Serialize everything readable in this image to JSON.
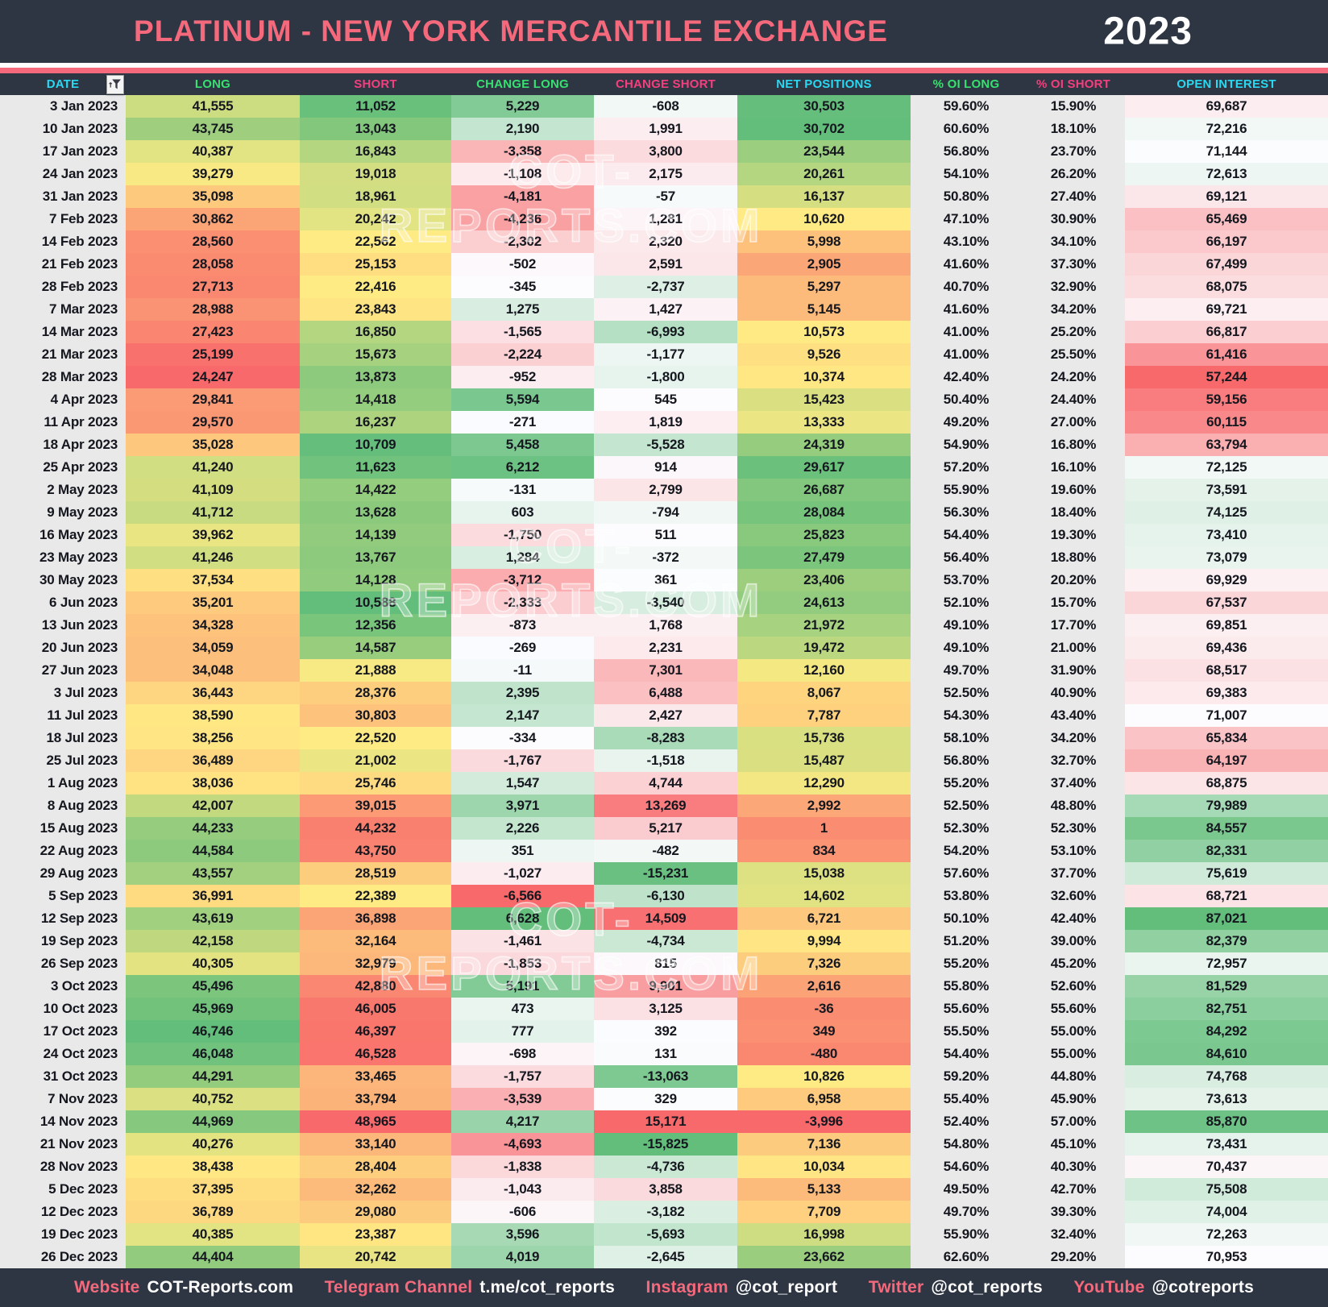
{
  "header": {
    "title": "PLATINUM - NEW YORK MERCANTILE EXCHANGE",
    "year": "2023"
  },
  "watermark": "COT-REPORTS.COM",
  "colors": {
    "bar_background": "#2e3643",
    "title_text": "#f4697c",
    "accent_line": "#f4697c",
    "header_cyan": "#29d9f2",
    "header_green": "#37e170",
    "header_pink": "#f43f7e",
    "cell_text": "#15171f",
    "neutral_cell": "#e9e9e9",
    "scale_red": "#f8696b",
    "scale_yellow": "#ffeb84",
    "scale_green": "#63be7b",
    "scale_white": "#fcfcff"
  },
  "chart_data": {
    "type": "table",
    "title": "PLATINUM - NEW YORK MERCANTILE EXCHANGE",
    "year": "2023",
    "columns": [
      {
        "name": "date",
        "label": "DATE",
        "header_color": "cyan",
        "scale": "none"
      },
      {
        "name": "long",
        "label": "LONG",
        "header_color": "green",
        "scale": "ryg"
      },
      {
        "name": "short",
        "label": "SHORT",
        "header_color": "pink",
        "scale": "gyr"
      },
      {
        "name": "change-long",
        "label": "CHANGE LONG",
        "header_color": "green",
        "scale": "rwg"
      },
      {
        "name": "change-short",
        "label": "CHANGE SHORT",
        "header_color": "pink",
        "scale": "gwr"
      },
      {
        "name": "net-positions",
        "label": "NET POSITIONS",
        "header_color": "cyan",
        "scale": "ryg"
      },
      {
        "name": "pct-oi-long",
        "label": "% OI LONG",
        "header_color": "green",
        "scale": "flat"
      },
      {
        "name": "pct-oi-short",
        "label": "% OI SHORT",
        "header_color": "pink",
        "scale": "flat"
      },
      {
        "name": "open-interest",
        "label": "OPEN INTEREST",
        "header_color": "cyan",
        "scale": "rwg"
      }
    ],
    "rows": [
      [
        "3 Jan 2023",
        "41,555",
        "11,052",
        "5,229",
        "-608",
        "30,503",
        "59.60%",
        "15.90%",
        "69,687"
      ],
      [
        "10 Jan 2023",
        "43,745",
        "13,043",
        "2,190",
        "1,991",
        "30,702",
        "60.60%",
        "18.10%",
        "72,216"
      ],
      [
        "17 Jan 2023",
        "40,387",
        "16,843",
        "-3,358",
        "3,800",
        "23,544",
        "56.80%",
        "23.70%",
        "71,144"
      ],
      [
        "24 Jan 2023",
        "39,279",
        "19,018",
        "-1,108",
        "2,175",
        "20,261",
        "54.10%",
        "26.20%",
        "72,613"
      ],
      [
        "31 Jan 2023",
        "35,098",
        "18,961",
        "-4,181",
        "-57",
        "16,137",
        "50.80%",
        "27.40%",
        "69,121"
      ],
      [
        "7 Feb 2023",
        "30,862",
        "20,242",
        "-4,236",
        "1,281",
        "10,620",
        "47.10%",
        "30.90%",
        "65,469"
      ],
      [
        "14 Feb 2023",
        "28,560",
        "22,562",
        "-2,302",
        "2,320",
        "5,998",
        "43.10%",
        "34.10%",
        "66,197"
      ],
      [
        "21 Feb 2023",
        "28,058",
        "25,153",
        "-502",
        "2,591",
        "2,905",
        "41.60%",
        "37.30%",
        "67,499"
      ],
      [
        "28 Feb 2023",
        "27,713",
        "22,416",
        "-345",
        "-2,737",
        "5,297",
        "40.70%",
        "32.90%",
        "68,075"
      ],
      [
        "7 Mar 2023",
        "28,988",
        "23,843",
        "1,275",
        "1,427",
        "5,145",
        "41.60%",
        "34.20%",
        "69,721"
      ],
      [
        "14 Mar 2023",
        "27,423",
        "16,850",
        "-1,565",
        "-6,993",
        "10,573",
        "41.00%",
        "25.20%",
        "66,817"
      ],
      [
        "21 Mar 2023",
        "25,199",
        "15,673",
        "-2,224",
        "-1,177",
        "9,526",
        "41.00%",
        "25.50%",
        "61,416"
      ],
      [
        "28 Mar 2023",
        "24,247",
        "13,873",
        "-952",
        "-1,800",
        "10,374",
        "42.40%",
        "24.20%",
        "57,244"
      ],
      [
        "4 Apr 2023",
        "29,841",
        "14,418",
        "5,594",
        "545",
        "15,423",
        "50.40%",
        "24.40%",
        "59,156"
      ],
      [
        "11 Apr 2023",
        "29,570",
        "16,237",
        "-271",
        "1,819",
        "13,333",
        "49.20%",
        "27.00%",
        "60,115"
      ],
      [
        "18 Apr 2023",
        "35,028",
        "10,709",
        "5,458",
        "-5,528",
        "24,319",
        "54.90%",
        "16.80%",
        "63,794"
      ],
      [
        "25 Apr 2023",
        "41,240",
        "11,623",
        "6,212",
        "914",
        "29,617",
        "57.20%",
        "16.10%",
        "72,125"
      ],
      [
        "2 May 2023",
        "41,109",
        "14,422",
        "-131",
        "2,799",
        "26,687",
        "55.90%",
        "19.60%",
        "73,591"
      ],
      [
        "9 May 2023",
        "41,712",
        "13,628",
        "603",
        "-794",
        "28,084",
        "56.30%",
        "18.40%",
        "74,125"
      ],
      [
        "16 May 2023",
        "39,962",
        "14,139",
        "-1,750",
        "511",
        "25,823",
        "54.40%",
        "19.30%",
        "73,410"
      ],
      [
        "23 May 2023",
        "41,246",
        "13,767",
        "1,284",
        "-372",
        "27,479",
        "56.40%",
        "18.80%",
        "73,079"
      ],
      [
        "30 May 2023",
        "37,534",
        "14,128",
        "-3,712",
        "361",
        "23,406",
        "53.70%",
        "20.20%",
        "69,929"
      ],
      [
        "6 Jun 2023",
        "35,201",
        "10,588",
        "-2,333",
        "-3,540",
        "24,613",
        "52.10%",
        "15.70%",
        "67,537"
      ],
      [
        "13 Jun 2023",
        "34,328",
        "12,356",
        "-873",
        "1,768",
        "21,972",
        "49.10%",
        "17.70%",
        "69,851"
      ],
      [
        "20 Jun 2023",
        "34,059",
        "14,587",
        "-269",
        "2,231",
        "19,472",
        "49.10%",
        "21.00%",
        "69,436"
      ],
      [
        "27 Jun 2023",
        "34,048",
        "21,888",
        "-11",
        "7,301",
        "12,160",
        "49.70%",
        "31.90%",
        "68,517"
      ],
      [
        "3 Jul 2023",
        "36,443",
        "28,376",
        "2,395",
        "6,488",
        "8,067",
        "52.50%",
        "40.90%",
        "69,383"
      ],
      [
        "11 Jul 2023",
        "38,590",
        "30,803",
        "2,147",
        "2,427",
        "7,787",
        "54.30%",
        "43.40%",
        "71,007"
      ],
      [
        "18 Jul 2023",
        "38,256",
        "22,520",
        "-334",
        "-8,283",
        "15,736",
        "58.10%",
        "34.20%",
        "65,834"
      ],
      [
        "25 Jul 2023",
        "36,489",
        "21,002",
        "-1,767",
        "-1,518",
        "15,487",
        "56.80%",
        "32.70%",
        "64,197"
      ],
      [
        "1 Aug 2023",
        "38,036",
        "25,746",
        "1,547",
        "4,744",
        "12,290",
        "55.20%",
        "37.40%",
        "68,875"
      ],
      [
        "8 Aug 2023",
        "42,007",
        "39,015",
        "3,971",
        "13,269",
        "2,992",
        "52.50%",
        "48.80%",
        "79,989"
      ],
      [
        "15 Aug 2023",
        "44,233",
        "44,232",
        "2,226",
        "5,217",
        "1",
        "52.30%",
        "52.30%",
        "84,557"
      ],
      [
        "22 Aug 2023",
        "44,584",
        "43,750",
        "351",
        "-482",
        "834",
        "54.20%",
        "53.10%",
        "82,331"
      ],
      [
        "29 Aug 2023",
        "43,557",
        "28,519",
        "-1,027",
        "-15,231",
        "15,038",
        "57.60%",
        "37.70%",
        "75,619"
      ],
      [
        "5 Sep 2023",
        "36,991",
        "22,389",
        "-6,566",
        "-6,130",
        "14,602",
        "53.80%",
        "32.60%",
        "68,721"
      ],
      [
        "12 Sep 2023",
        "43,619",
        "36,898",
        "6,628",
        "14,509",
        "6,721",
        "50.10%",
        "42.40%",
        "87,021"
      ],
      [
        "19 Sep 2023",
        "42,158",
        "32,164",
        "-1,461",
        "-4,734",
        "9,994",
        "51.20%",
        "39.00%",
        "82,379"
      ],
      [
        "26 Sep 2023",
        "40,305",
        "32,979",
        "-1,853",
        "815",
        "7,326",
        "55.20%",
        "45.20%",
        "72,957"
      ],
      [
        "3 Oct 2023",
        "45,496",
        "42,880",
        "5,191",
        "9,901",
        "2,616",
        "55.80%",
        "52.60%",
        "81,529"
      ],
      [
        "10 Oct 2023",
        "45,969",
        "46,005",
        "473",
        "3,125",
        "-36",
        "55.60%",
        "55.60%",
        "82,751"
      ],
      [
        "17 Oct 2023",
        "46,746",
        "46,397",
        "777",
        "392",
        "349",
        "55.50%",
        "55.00%",
        "84,292"
      ],
      [
        "24 Oct 2023",
        "46,048",
        "46,528",
        "-698",
        "131",
        "-480",
        "54.40%",
        "55.00%",
        "84,610"
      ],
      [
        "31 Oct 2023",
        "44,291",
        "33,465",
        "-1,757",
        "-13,063",
        "10,826",
        "59.20%",
        "44.80%",
        "74,768"
      ],
      [
        "7 Nov 2023",
        "40,752",
        "33,794",
        "-3,539",
        "329",
        "6,958",
        "55.40%",
        "45.90%",
        "73,613"
      ],
      [
        "14 Nov 2023",
        "44,969",
        "48,965",
        "4,217",
        "15,171",
        "-3,996",
        "52.40%",
        "57.00%",
        "85,870"
      ],
      [
        "21 Nov 2023",
        "40,276",
        "33,140",
        "-4,693",
        "-15,825",
        "7,136",
        "54.80%",
        "45.10%",
        "73,431"
      ],
      [
        "28 Nov 2023",
        "38,438",
        "28,404",
        "-1,838",
        "-4,736",
        "10,034",
        "54.60%",
        "40.30%",
        "70,437"
      ],
      [
        "5 Dec 2023",
        "37,395",
        "32,262",
        "-1,043",
        "3,858",
        "5,133",
        "49.50%",
        "42.70%",
        "75,508"
      ],
      [
        "12 Dec 2023",
        "36,789",
        "29,080",
        "-606",
        "-3,182",
        "7,709",
        "49.70%",
        "39.30%",
        "74,004"
      ],
      [
        "19 Dec 2023",
        "40,385",
        "23,387",
        "3,596",
        "-5,693",
        "16,998",
        "55.90%",
        "32.40%",
        "72,263"
      ],
      [
        "26 Dec 2023",
        "44,404",
        "20,742",
        "4,019",
        "-2,645",
        "23,662",
        "62.60%",
        "29.20%",
        "70,953"
      ]
    ]
  },
  "footer": {
    "items": [
      {
        "label": "Website",
        "value": "COT-Reports.com"
      },
      {
        "label": "Telegram Channel",
        "value": "t.me/cot_reports"
      },
      {
        "label": "Instagram",
        "value": "@cot_report"
      },
      {
        "label": "Twitter",
        "value": "@cot_reports"
      },
      {
        "label": "YouTube",
        "value": "@cotreports"
      }
    ]
  }
}
